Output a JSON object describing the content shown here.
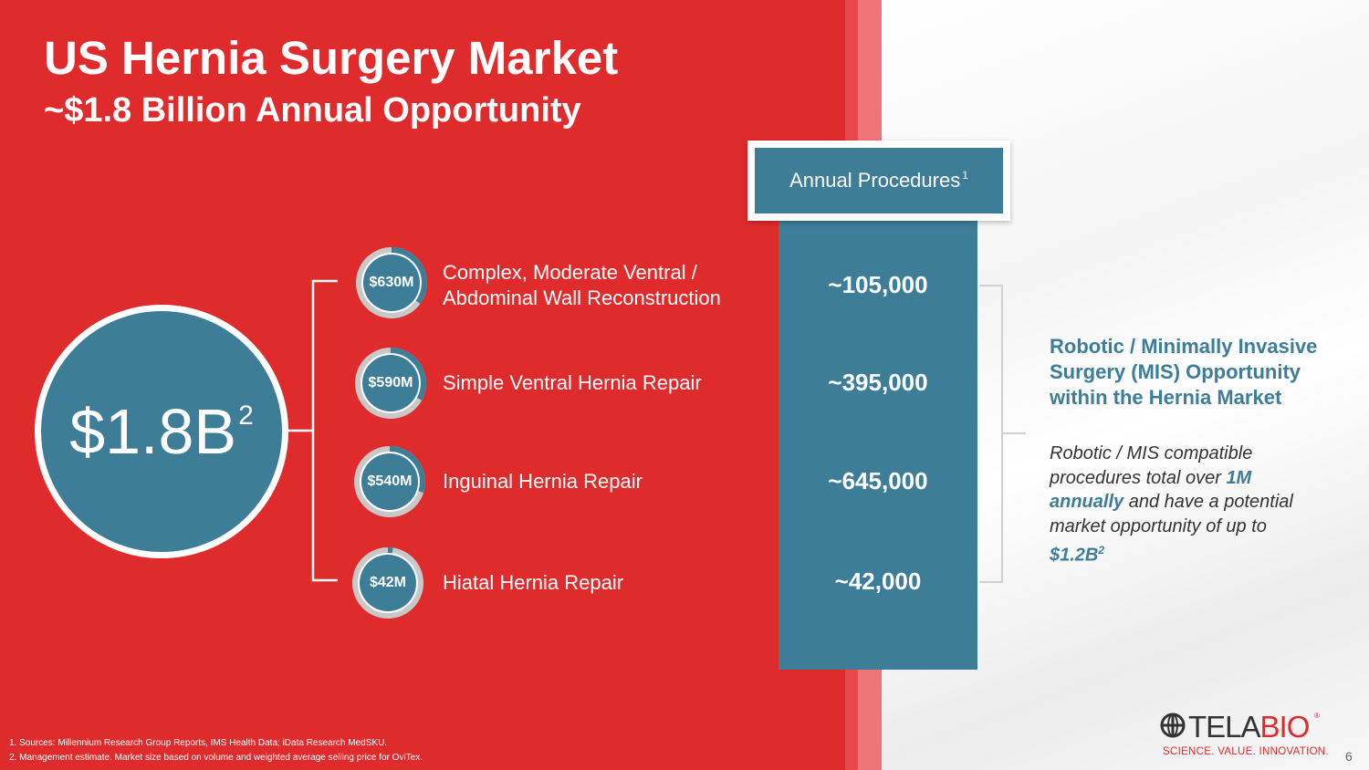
{
  "title": "US Hernia Surgery Market",
  "subtitle": "~$1.8 Billion Annual Opportunity",
  "total": {
    "value": "$1.8B",
    "footnote_ref": "2"
  },
  "procedures_header": {
    "label": "Annual Procedures",
    "footnote_ref": "1"
  },
  "segments": [
    {
      "value": "$630M",
      "label_line1": "Complex, Moderate Ventral /",
      "label_line2": "Abdominal Wall Reconstruction",
      "procedures": "~105,000",
      "share": 0.35
    },
    {
      "value": "$590M",
      "label_line1": "Simple Ventral Hernia Repair",
      "label_line2": "",
      "procedures": "~395,000",
      "share": 0.33
    },
    {
      "value": "$540M",
      "label_line1": "Inguinal Hernia Repair",
      "label_line2": "",
      "procedures": "~645,000",
      "share": 0.3
    },
    {
      "value": "$42M",
      "label_line1": "Hiatal Hernia Repair",
      "label_line2": "",
      "procedures": "~42,000",
      "share": 0.023
    }
  ],
  "callout": {
    "heading": "Robotic / Minimally Invasive Surgery (MIS) Opportunity within the Hernia Market",
    "body_part1": "Robotic / MIS compatible procedures total over ",
    "body_highlight1": "1M annually",
    "body_part2": " and have a potential market opportunity of up to ",
    "body_highlight2": "$1.2B",
    "body_footnote_ref": "2"
  },
  "footnotes": [
    "1. Sources: Millennium Research Group Reports, IMS Health Data; iData Research MedSKU.",
    "2. Management estimate. Market size based on volume and weighted average selling price for OviTex."
  ],
  "logo": {
    "word_prefix": "TELA",
    "word_suffix": "BIO",
    "reg": "®",
    "tagline": "SCIENCE. VALUE. INNOVATION."
  },
  "page_number": "6",
  "colors": {
    "red": "#e02b2d",
    "teal": "#3d7d98",
    "ring_gray": "#c8c8c8"
  }
}
